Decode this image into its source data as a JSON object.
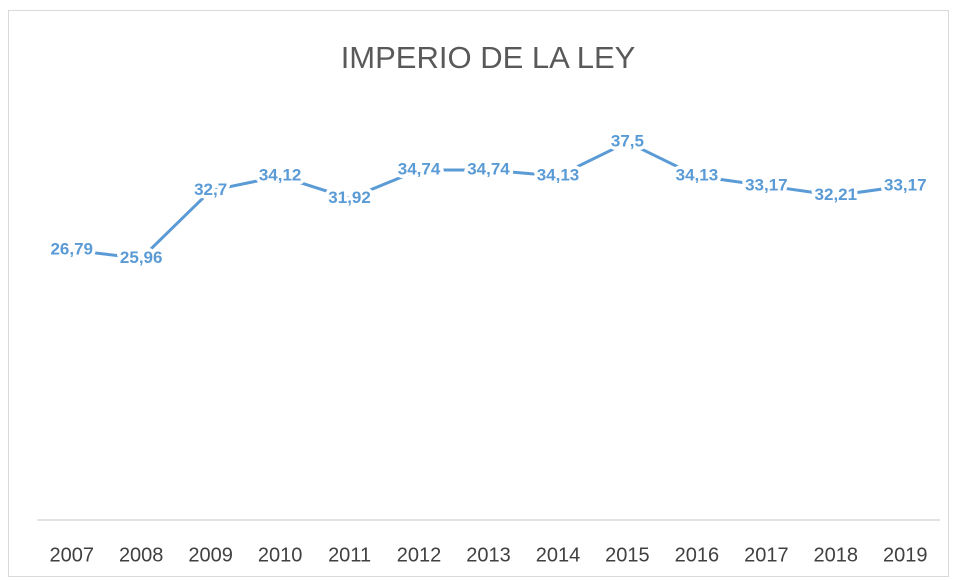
{
  "chart_data": {
    "type": "line",
    "title": "IMPERIO DE LA LEY",
    "categories": [
      "2007",
      "2008",
      "2009",
      "2010",
      "2011",
      "2012",
      "2013",
      "2014",
      "2015",
      "2016",
      "2017",
      "2018",
      "2019"
    ],
    "values": [
      26.79,
      25.96,
      32.7,
      34.12,
      31.92,
      34.74,
      34.74,
      34.13,
      37.5,
      34.13,
      33.17,
      32.21,
      33.17
    ],
    "value_labels": [
      "26,79",
      "25,96",
      "32,7",
      "34,12",
      "31,92",
      "34,74",
      "34,74",
      "34,13",
      "37,5",
      "34,13",
      "33,17",
      "32,21",
      "33,17"
    ],
    "color": "#5b9bd5",
    "ylim": [
      0,
      40
    ]
  }
}
